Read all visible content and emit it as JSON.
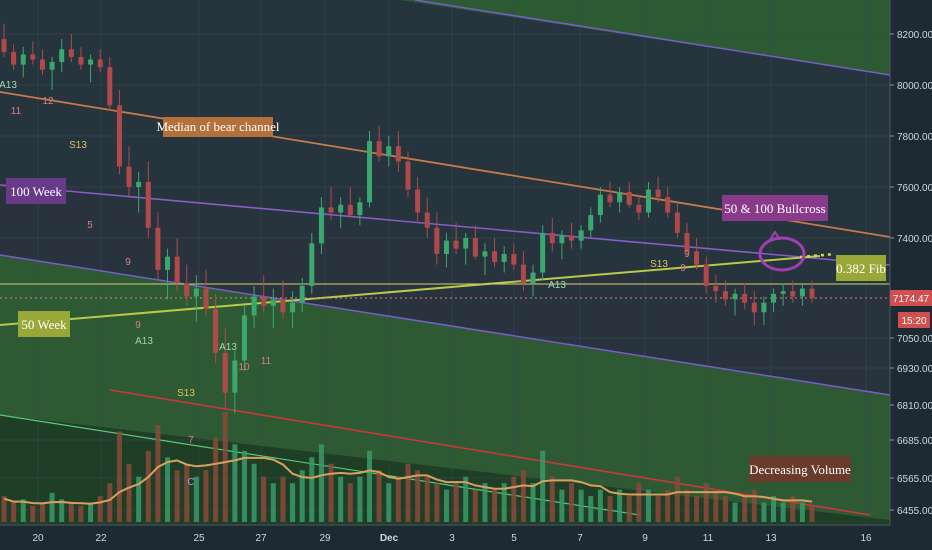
{
  "chart_data": {
    "type": "candlestick",
    "x_ticks": [
      "20",
      "22",
      "25",
      "27",
      "29",
      "Dec",
      "3",
      "5",
      "7",
      "9",
      "11",
      "13",
      "16"
    ],
    "y_ticks": [
      8200,
      8000,
      7800,
      7600,
      7400,
      7174.47,
      7050,
      6930,
      6810,
      6685,
      6565,
      6455
    ],
    "price_label": "7174.47",
    "time_label": "15:20",
    "y_range": [
      6440,
      8280
    ],
    "annotations": {
      "median": "Median of bear channel",
      "week100": "100 Week",
      "week50": "50 Week",
      "bullcross": "50 & 100 Bullcross",
      "fib": "0.382 Fib",
      "volume": "Decreasing  Volume"
    },
    "td_labels": [
      "A13",
      "12",
      "11",
      "S13",
      "9",
      "5",
      "9",
      "A13",
      "A13",
      "S13",
      "7",
      "10",
      "11",
      "9",
      "A13",
      "S13",
      "9",
      "C"
    ],
    "candles": [
      [
        8180,
        8240,
        8110,
        8130
      ],
      [
        8130,
        8160,
        8060,
        8080
      ],
      [
        8080,
        8150,
        8030,
        8120
      ],
      [
        8120,
        8170,
        8080,
        8100
      ],
      [
        8100,
        8140,
        8040,
        8060
      ],
      [
        8060,
        8110,
        7980,
        8090
      ],
      [
        8090,
        8180,
        8050,
        8140
      ],
      [
        8140,
        8200,
        8090,
        8110
      ],
      [
        8110,
        8150,
        8060,
        8080
      ],
      [
        8080,
        8120,
        8010,
        8100
      ],
      [
        8100,
        8140,
        8050,
        8070
      ],
      [
        8070,
        8110,
        7900,
        7920
      ],
      [
        7920,
        7980,
        7650,
        7680
      ],
      [
        7680,
        7760,
        7560,
        7600
      ],
      [
        7600,
        7660,
        7500,
        7620
      ],
      [
        7620,
        7700,
        7400,
        7440
      ],
      [
        7440,
        7500,
        7240,
        7280
      ],
      [
        7280,
        7360,
        7170,
        7330
      ],
      [
        7330,
        7400,
        7200,
        7230
      ],
      [
        7230,
        7300,
        7150,
        7180
      ],
      [
        7180,
        7260,
        7100,
        7210
      ],
      [
        7210,
        7280,
        7120,
        7140
      ],
      [
        7140,
        7190,
        6950,
        6990
      ],
      [
        6990,
        7080,
        6800,
        6850
      ],
      [
        6850,
        7000,
        6780,
        6960
      ],
      [
        6960,
        7150,
        6920,
        7120
      ],
      [
        7120,
        7220,
        7080,
        7180
      ],
      [
        7180,
        7260,
        7130,
        7150
      ],
      [
        7150,
        7210,
        7080,
        7170
      ],
      [
        7170,
        7240,
        7110,
        7130
      ],
      [
        7130,
        7200,
        7080,
        7160
      ],
      [
        7160,
        7250,
        7130,
        7220
      ],
      [
        7220,
        7420,
        7190,
        7380
      ],
      [
        7380,
        7560,
        7340,
        7520
      ],
      [
        7520,
        7600,
        7470,
        7500
      ],
      [
        7500,
        7560,
        7440,
        7530
      ],
      [
        7530,
        7600,
        7480,
        7490
      ],
      [
        7490,
        7560,
        7450,
        7540
      ],
      [
        7540,
        7820,
        7520,
        7780
      ],
      [
        7780,
        7840,
        7700,
        7720
      ],
      [
        7720,
        7800,
        7680,
        7760
      ],
      [
        7760,
        7820,
        7660,
        7700
      ],
      [
        7700,
        7740,
        7560,
        7590
      ],
      [
        7590,
        7640,
        7460,
        7500
      ],
      [
        7500,
        7560,
        7400,
        7440
      ],
      [
        7440,
        7500,
        7300,
        7340
      ],
      [
        7340,
        7420,
        7290,
        7390
      ],
      [
        7390,
        7460,
        7340,
        7360
      ],
      [
        7360,
        7420,
        7300,
        7400
      ],
      [
        7400,
        7450,
        7320,
        7330
      ],
      [
        7330,
        7380,
        7260,
        7350
      ],
      [
        7350,
        7400,
        7290,
        7310
      ],
      [
        7310,
        7370,
        7270,
        7340
      ],
      [
        7340,
        7380,
        7280,
        7300
      ],
      [
        7300,
        7350,
        7200,
        7230
      ],
      [
        7230,
        7300,
        7180,
        7270
      ],
      [
        7270,
        7450,
        7240,
        7420
      ],
      [
        7420,
        7480,
        7350,
        7380
      ],
      [
        7380,
        7430,
        7320,
        7410
      ],
      [
        7410,
        7460,
        7360,
        7390
      ],
      [
        7390,
        7450,
        7360,
        7430
      ],
      [
        7430,
        7520,
        7400,
        7490
      ],
      [
        7490,
        7600,
        7460,
        7570
      ],
      [
        7570,
        7620,
        7520,
        7540
      ],
      [
        7540,
        7600,
        7500,
        7580
      ],
      [
        7580,
        7620,
        7520,
        7530
      ],
      [
        7530,
        7570,
        7470,
        7500
      ],
      [
        7500,
        7620,
        7480,
        7590
      ],
      [
        7590,
        7640,
        7540,
        7560
      ],
      [
        7560,
        7600,
        7480,
        7500
      ],
      [
        7500,
        7540,
        7400,
        7420
      ],
      [
        7420,
        7460,
        7330,
        7350
      ],
      [
        7350,
        7400,
        7280,
        7300
      ],
      [
        7300,
        7330,
        7190,
        7220
      ],
      [
        7220,
        7260,
        7160,
        7200
      ],
      [
        7200,
        7240,
        7150,
        7170
      ],
      [
        7170,
        7210,
        7120,
        7190
      ],
      [
        7190,
        7230,
        7140,
        7160
      ],
      [
        7160,
        7200,
        7090,
        7130
      ],
      [
        7130,
        7180,
        7090,
        7160
      ],
      [
        7160,
        7210,
        7130,
        7190
      ],
      [
        7190,
        7230,
        7150,
        7200
      ],
      [
        7200,
        7240,
        7160,
        7180
      ],
      [
        7180,
        7230,
        7150,
        7210
      ],
      [
        7210,
        7240,
        7160,
        7174
      ]
    ],
    "volume": [
      8,
      6,
      7,
      5,
      6,
      9,
      7,
      6,
      5,
      6,
      8,
      12,
      28,
      18,
      14,
      22,
      30,
      20,
      16,
      18,
      14,
      16,
      26,
      34,
      24,
      22,
      18,
      14,
      12,
      14,
      12,
      16,
      20,
      24,
      18,
      14,
      12,
      14,
      22,
      16,
      12,
      14,
      18,
      16,
      14,
      12,
      10,
      12,
      14,
      10,
      12,
      10,
      12,
      14,
      16,
      12,
      22,
      14,
      10,
      12,
      10,
      8,
      10,
      8,
      10,
      8,
      12,
      10,
      8,
      10,
      14,
      10,
      8,
      12,
      10,
      8,
      6,
      8,
      10,
      6,
      8,
      6,
      8,
      6,
      5
    ]
  }
}
